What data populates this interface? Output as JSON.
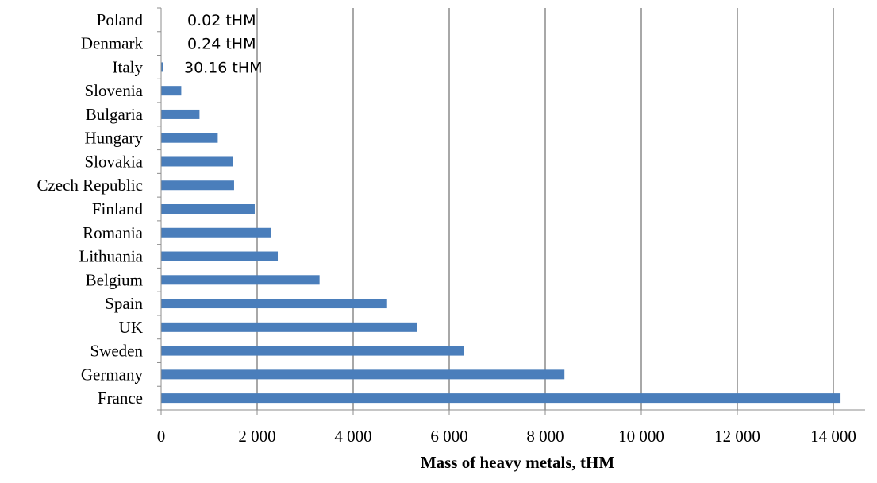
{
  "chart_data": {
    "type": "bar",
    "orientation": "horizontal",
    "categories": [
      "Poland",
      "Denmark",
      "Italy",
      "Slovenia",
      "Bulgaria",
      "Hungary",
      "Slovakia",
      "Czech Republic",
      "Finland",
      "Romania",
      "Lithuania",
      "Belgium",
      "Spain",
      "UK",
      "Sweden",
      "Germany",
      "France"
    ],
    "values": [
      0.02,
      0.24,
      30.16,
      420,
      800,
      1180,
      1500,
      1520,
      1950,
      2290,
      2430,
      3300,
      4690,
      5330,
      6300,
      8400,
      14150
    ],
    "title": "",
    "xlabel": "Mass of heavy metals, tHM",
    "ylabel": "",
    "xlim": [
      0,
      14500
    ],
    "xticks": [
      0,
      2000,
      4000,
      6000,
      8000,
      10000,
      12000,
      14000
    ],
    "xtick_labels": [
      "0",
      "2 000",
      "4 000",
      "6 000",
      "8 000",
      "10 000",
      "12 000",
      "14 000"
    ],
    "grid": "vertical",
    "bar_color": "#4a7ebb",
    "grid_color": "#8c8c8c",
    "annotations": [
      {
        "category": "Poland",
        "text": "0.02 tHM"
      },
      {
        "category": "Denmark",
        "text": "0.24 tHM"
      },
      {
        "category": "Italy",
        "text": "30.16 tHM"
      }
    ]
  }
}
